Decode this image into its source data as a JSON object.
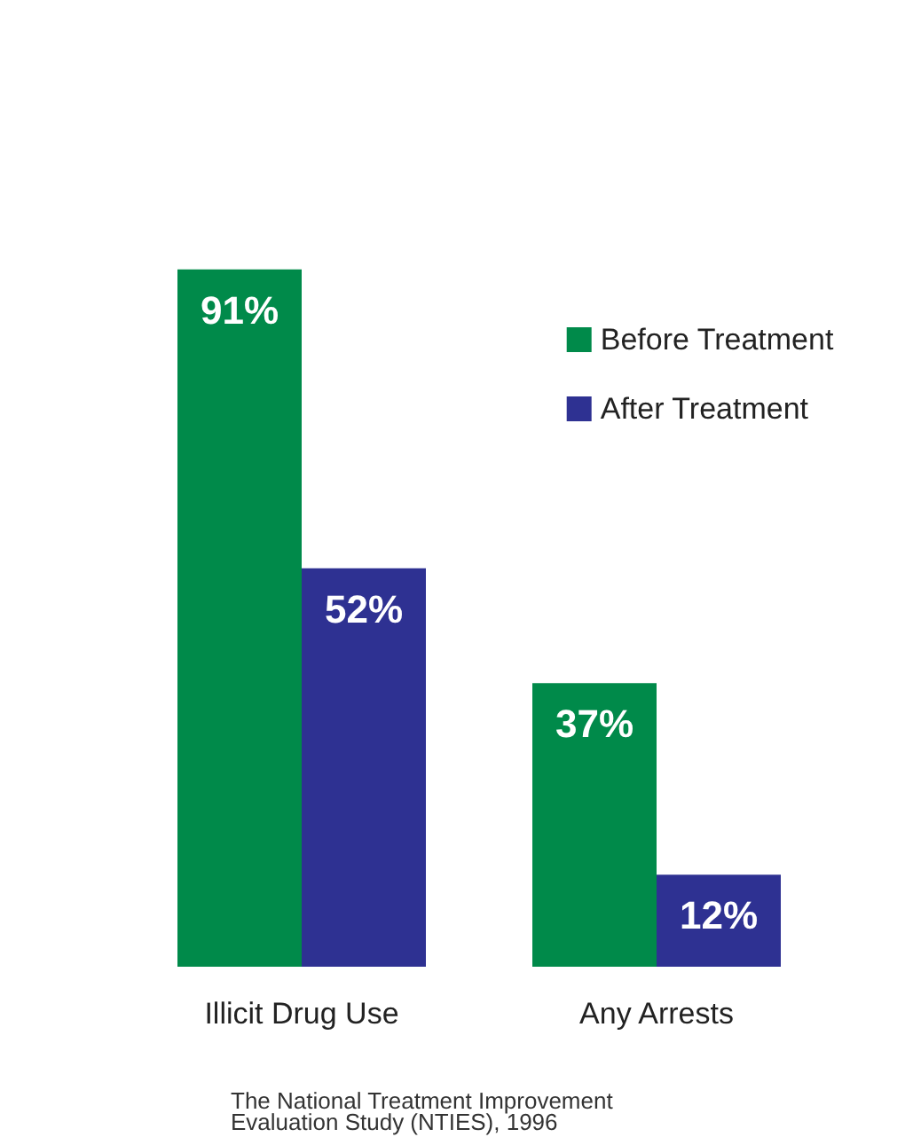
{
  "chart_data": {
    "type": "bar",
    "categories": [
      "Illicit Drug Use",
      "Any Arrests"
    ],
    "series": [
      {
        "name": "Before Treatment",
        "color": "#008a4a",
        "values": [
          91,
          37
        ],
        "value_labels": [
          "91%",
          "37%"
        ]
      },
      {
        "name": "After Treatment",
        "color": "#2e3192",
        "values": [
          52,
          12
        ],
        "value_labels": [
          "52%",
          "12%"
        ]
      }
    ],
    "legend": "top right",
    "grid": false,
    "annotations": [
      "The National Treatment Improvement Evaluation Study (NTIES), 1996"
    ]
  }
}
